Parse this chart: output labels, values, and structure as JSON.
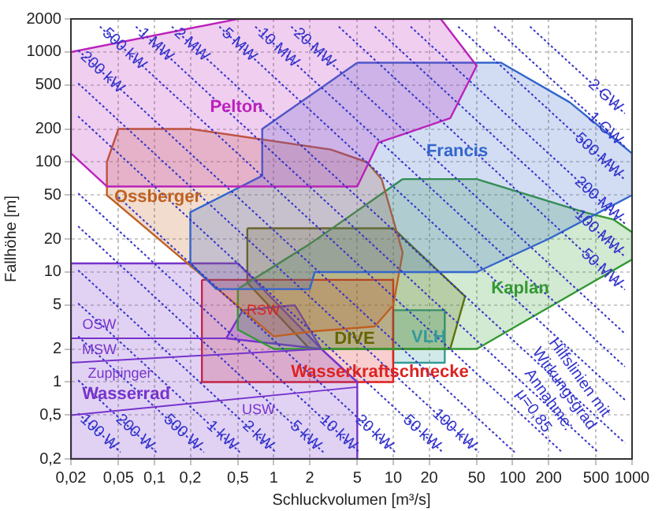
{
  "chart_data": {
    "type": "area",
    "xlabel": "Schluckvolumen [m³/s]",
    "ylabel": "Fallhöhe [m]",
    "log": "xy",
    "grid": true,
    "xlim": [
      0.02,
      1000
    ],
    "ylim": [
      0.2,
      2000
    ],
    "xticks": [
      {
        "value": 0.02,
        "label": "0,02"
      },
      {
        "value": 0.05,
        "label": "0,05"
      },
      {
        "value": 0.1,
        "label": "0,1"
      },
      {
        "value": 0.2,
        "label": "0,2"
      },
      {
        "value": 0.5,
        "label": "0,5"
      },
      1,
      2,
      5,
      10,
      20,
      50,
      100,
      200,
      500,
      1000
    ],
    "yticks": [
      {
        "value": 0.2,
        "label": "0,2"
      },
      {
        "value": 0.5,
        "label": "0,5"
      },
      1,
      2,
      5,
      10,
      20,
      50,
      100,
      200,
      500,
      1000,
      2000
    ],
    "series": [
      {
        "color": "#bb22bb",
        "x": [
          0.02,
          0.5,
          25,
          50,
          30,
          7.5,
          5,
          0.04,
          0.02
        ],
        "values": [
          1000,
          2000,
          2000,
          750,
          250,
          150,
          60,
          60,
          120
        ]
      },
      {
        "color": "#3366cc",
        "x": [
          5,
          80,
          300,
          1000,
          1000,
          200,
          50,
          2.2,
          2,
          0.33,
          0.2,
          0.2,
          0.8,
          0.8
        ],
        "values": [
          800,
          800,
          350,
          120,
          50,
          20,
          10,
          10,
          7,
          7,
          12,
          35,
          75,
          200
        ]
      },
      {
        "color": "#c06020",
        "x": [
          0.05,
          0.2,
          3,
          6,
          8,
          12,
          10,
          7,
          2.2,
          1,
          0.04,
          0.04
        ],
        "values": [
          200,
          200,
          130,
          100,
          70,
          15,
          5,
          3.2,
          2.9,
          2.6,
          50,
          100
        ]
      },
      {
        "color": "#339933",
        "x": [
          12,
          50,
          400,
          700,
          1000,
          1000,
          50,
          1,
          0.5,
          0.5,
          2
        ],
        "values": [
          70,
          70,
          35,
          30,
          23,
          13,
          2,
          2,
          3,
          7,
          18
        ]
      },
      {
        "color": "#7733cc",
        "x": [
          0.02,
          0.5,
          2.5,
          5,
          5,
          0.02
        ],
        "values": [
          12,
          12,
          2,
          1,
          0.2,
          0.2
        ]
      },
      {
        "color": "#7733cc",
        "x": [
          0.4,
          0.55,
          1.5,
          2.5
        ],
        "values": [
          2.5,
          4.5,
          5,
          2
        ]
      },
      {
        "type": "line",
        "color": "#7733cc",
        "x": [
          0.02,
          0.4
        ],
        "values": [
          2.5,
          2.5
        ]
      },
      {
        "type": "line",
        "color": "#7733cc",
        "x": [
          0.02,
          2.5
        ],
        "values": [
          1.5,
          2
        ]
      },
      {
        "type": "line",
        "color": "#7733cc",
        "x": [
          0.02,
          5
        ],
        "values": [
          0.5,
          0.9
        ]
      },
      {
        "color": "#dd2222",
        "x": [
          0.25,
          10,
          10,
          0.25
        ],
        "values": [
          8.5,
          8.5,
          1,
          1
        ]
      },
      {
        "color": "#666600",
        "x": [
          0.6,
          10,
          40,
          30,
          2,
          0.6
        ],
        "values": [
          25,
          25,
          6,
          2,
          2,
          8
        ]
      },
      {
        "color": "#339999",
        "x": [
          10,
          27,
          27,
          10
        ],
        "values": [
          4.5,
          4.5,
          1.5,
          1.5
        ]
      },
      {
        "name": "100 W",
        "type": "line",
        "line_style": "dotted",
        "color": "#3333cc",
        "x": [
          0.023,
          0.052
        ],
        "values": [
          0.52,
          0.23
        ]
      },
      {
        "name": "200 W",
        "type": "line",
        "line_style": "dotted",
        "color": "#3333cc",
        "x": [
          0.023,
          0.104
        ],
        "values": [
          1.04,
          0.23
        ]
      },
      {
        "name": "500 W",
        "type": "line",
        "line_style": "dotted",
        "color": "#3333cc",
        "x": [
          0.023,
          0.26
        ],
        "values": [
          2.6,
          0.23
        ]
      },
      {
        "name": "1 kW",
        "type": "line",
        "line_style": "dotted",
        "color": "#3333cc",
        "x": [
          0.023,
          0.52
        ],
        "values": [
          5.2,
          0.23
        ]
      },
      {
        "name": "2 kW",
        "type": "line",
        "line_style": "dotted",
        "color": "#3333cc",
        "x": [
          0.023,
          1.04
        ],
        "values": [
          10.4,
          0.23
        ]
      },
      {
        "name": "5 kW",
        "type": "line",
        "line_style": "dotted",
        "color": "#3333cc",
        "x": [
          0.023,
          2.6
        ],
        "values": [
          26,
          0.23
        ]
      },
      {
        "name": "10 kW",
        "type": "line",
        "line_style": "dotted",
        "color": "#3333cc",
        "x": [
          0.023,
          5.2
        ],
        "values": [
          52,
          0.23
        ]
      },
      {
        "name": "20 kW",
        "type": "line",
        "line_style": "dotted",
        "color": "#3333cc",
        "x": [
          0.05,
          10.4
        ],
        "values": [
          48,
          0.23
        ]
      },
      {
        "name": "50 kW",
        "type": "line",
        "line_style": "dotted",
        "color": "#3333cc",
        "x": [
          0.023,
          26
        ],
        "values": [
          260,
          0.23
        ]
      },
      {
        "name": "100 kW",
        "type": "line",
        "line_style": "dotted",
        "color": "#3333cc",
        "x": [
          0.023,
          52
        ],
        "values": [
          520,
          0.23
        ]
      },
      {
        "name": "200 kW",
        "type": "line",
        "line_style": "dotted",
        "color": "#3333cc",
        "x": [
          0.023,
          104
        ],
        "values": [
          1040,
          0.23
        ]
      },
      {
        "name": "500 kW",
        "type": "line",
        "line_style": "dotted",
        "color": "#3333cc",
        "x": [
          0.035,
          260
        ],
        "values": [
          1700,
          0.23
        ]
      },
      {
        "name": "1 MW",
        "type": "line",
        "line_style": "dotted",
        "color": "#3333cc",
        "x": [
          0.07,
          520
        ],
        "values": [
          1700,
          0.23
        ]
      },
      {
        "name": "2 MW",
        "type": "line",
        "line_style": "dotted",
        "color": "#3333cc",
        "x": [
          0.14,
          870
        ],
        "values": [
          1700,
          0.28
        ]
      },
      {
        "name": "5 MW",
        "type": "line",
        "line_style": "dotted",
        "color": "#3333cc",
        "x": [
          0.35,
          870
        ],
        "values": [
          1700,
          0.69
        ]
      },
      {
        "name": "10 MW",
        "type": "line",
        "line_style": "dotted",
        "color": "#3333cc",
        "x": [
          0.7,
          870
        ],
        "values": [
          1700,
          1.38
        ]
      },
      {
        "name": "20 MW",
        "type": "line",
        "line_style": "dotted",
        "color": "#3333cc",
        "x": [
          1.4,
          870
        ],
        "values": [
          1700,
          2.76
        ]
      },
      {
        "name": "50 MW",
        "type": "line",
        "line_style": "dotted",
        "color": "#3333cc",
        "x": [
          3.5,
          870
        ],
        "values": [
          1700,
          6.9
        ]
      },
      {
        "name": "100 MW",
        "type": "line",
        "line_style": "dotted",
        "color": "#3333cc",
        "x": [
          7,
          870
        ],
        "values": [
          1700,
          13.8
        ]
      },
      {
        "name": "200 MW",
        "type": "line",
        "line_style": "dotted",
        "color": "#3333cc",
        "x": [
          14,
          870
        ],
        "values": [
          1700,
          27.6
        ]
      },
      {
        "name": "500 MW",
        "type": "line",
        "line_style": "dotted",
        "color": "#3333cc",
        "x": [
          35,
          870
        ],
        "values": [
          1700,
          69
        ]
      },
      {
        "name": "1 GW",
        "type": "line",
        "line_style": "dotted",
        "color": "#3333cc",
        "x": [
          70,
          870
        ],
        "values": [
          1700,
          138
        ]
      },
      {
        "name": "2 GW",
        "type": "line",
        "line_style": "dotted",
        "color": "#3333cc",
        "x": [
          140,
          870
        ],
        "values": [
          1700,
          276
        ]
      }
    ],
    "annotations": [
      "Pelton",
      "Ossberger",
      "Francis",
      "Kaplan",
      "DIVE",
      "VLH",
      "Wasserkraftschnecke",
      "Wasserrad",
      "OSW",
      "MSW",
      "Zuppinger",
      "USW",
      "RSW",
      "Hilfslinien mit\nWirkungsgrad\nAnnahme:\nμ=0,85"
    ]
  }
}
